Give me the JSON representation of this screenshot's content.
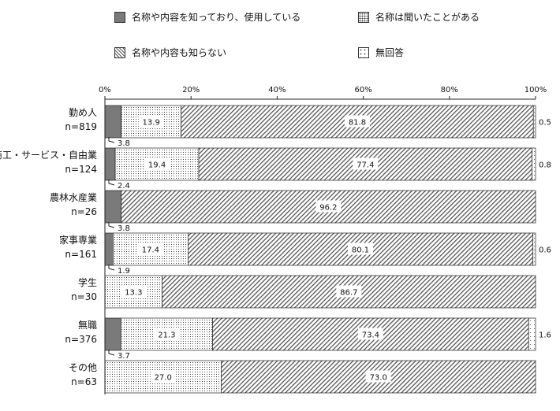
{
  "chart_data": {
    "type": "bar",
    "orientation": "horizontal",
    "stacked": true,
    "xlim": [
      0,
      100
    ],
    "x_ticks": [
      "0%",
      "20%",
      "40%",
      "60%",
      "80%",
      "100%"
    ],
    "legend_position": "top",
    "series": [
      {
        "name": "名称や内容を知っており、使用している",
        "pattern": "solid-gray",
        "color": "#7a7a7a"
      },
      {
        "name": "名称は聞いたことがある",
        "pattern": "dots-dense",
        "color": "#ffffff"
      },
      {
        "name": "名称や内容も知らない",
        "pattern": "diagonal-hatch",
        "color": "#ffffff"
      },
      {
        "name": "無回答",
        "pattern": "dots-sparse",
        "color": "#ffffff"
      }
    ],
    "categories": [
      {
        "name": "勤め人",
        "n": "n=819",
        "values": [
          3.8,
          13.9,
          81.8,
          0.5
        ],
        "labels": [
          "3.8",
          "13.9",
          "81.8",
          "0.5"
        ]
      },
      {
        "name": "商工・サービス・自由業",
        "n": "n=124",
        "values": [
          2.4,
          19.4,
          77.4,
          0.8
        ],
        "labels": [
          "2.4",
          "19.4",
          "77.4",
          "0.8"
        ]
      },
      {
        "name": "農林水産業",
        "n": "n=26",
        "values": [
          3.8,
          0,
          96.2,
          0
        ],
        "labels": [
          "3.8",
          "",
          "96.2",
          ""
        ]
      },
      {
        "name": "家事専業",
        "n": "n=161",
        "values": [
          1.9,
          17.4,
          80.1,
          0.6
        ],
        "labels": [
          "1.9",
          "17.4",
          "80.1",
          "0.6"
        ]
      },
      {
        "name": "学生",
        "n": "n=30",
        "values": [
          0,
          13.3,
          86.7,
          0
        ],
        "labels": [
          "",
          "13.3",
          "86.7",
          ""
        ]
      },
      {
        "name": "無職",
        "n": "n=376",
        "values": [
          3.7,
          21.3,
          73.4,
          1.6
        ],
        "labels": [
          "3.7",
          "21.3",
          "73.4",
          "1.6"
        ]
      },
      {
        "name": "その他",
        "n": "n=63",
        "values": [
          0,
          27.0,
          73.0,
          0
        ],
        "labels": [
          "",
          "27.0",
          "73.0",
          ""
        ]
      }
    ]
  }
}
